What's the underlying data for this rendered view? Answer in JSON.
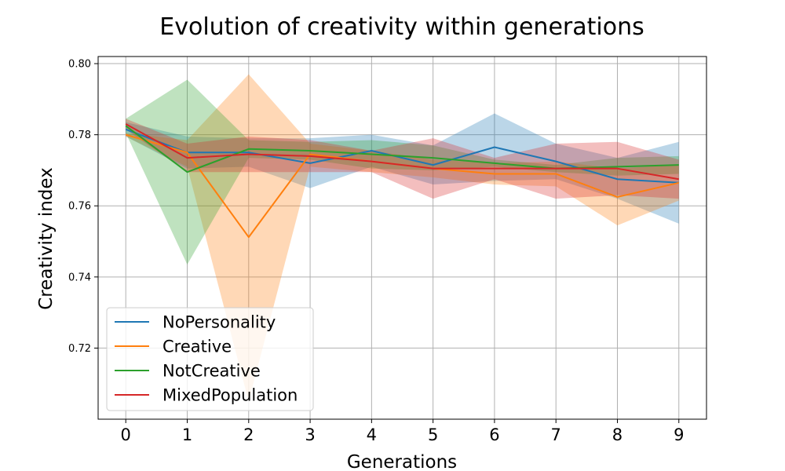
{
  "chart_data": {
    "type": "line",
    "title": "Evolution of creativity within generations",
    "xlabel": "Generations",
    "ylabel": "Creativity index",
    "x": [
      0,
      1,
      2,
      3,
      4,
      5,
      6,
      7,
      8,
      9
    ],
    "xlim": [
      -0.45,
      9.45
    ],
    "ylim": [
      0.7,
      0.802
    ],
    "yticks": [
      "0.72",
      "0.74",
      "0.76",
      "0.78",
      "0.80"
    ],
    "ytick_values": [
      0.72,
      0.74,
      0.76,
      0.78,
      0.8
    ],
    "xticks": [
      "0",
      "1",
      "2",
      "3",
      "4",
      "5",
      "6",
      "7",
      "8",
      "9"
    ],
    "grid": true,
    "legend_position": "lower-left",
    "series": [
      {
        "name": "NoPersonality",
        "color": "#1f77b4",
        "values": [
          0.7815,
          0.775,
          0.775,
          0.772,
          0.7755,
          0.7715,
          0.7765,
          0.7725,
          0.7675,
          0.7665
        ],
        "lower": [
          0.7795,
          0.7705,
          0.771,
          0.765,
          0.771,
          0.766,
          0.767,
          0.7675,
          0.762,
          0.755
        ],
        "upper": [
          0.7835,
          0.7795,
          0.779,
          0.779,
          0.78,
          0.777,
          0.786,
          0.7775,
          0.7735,
          0.778
        ]
      },
      {
        "name": "Creative",
        "color": "#ff7f0e",
        "values": [
          0.78,
          0.775,
          0.7512,
          0.7745,
          0.7725,
          0.7705,
          0.769,
          0.769,
          0.7625,
          0.7665
        ],
        "lower": [
          0.7795,
          0.771,
          0.705,
          0.771,
          0.7695,
          0.768,
          0.766,
          0.7655,
          0.7545,
          0.7615
        ],
        "upper": [
          0.7805,
          0.7785,
          0.797,
          0.7775,
          0.7755,
          0.773,
          0.772,
          0.7725,
          0.7705,
          0.7715
        ]
      },
      {
        "name": "NotCreative",
        "color": "#2ca02c",
        "values": [
          0.7825,
          0.7695,
          0.776,
          0.7755,
          0.7745,
          0.7735,
          0.772,
          0.7705,
          0.771,
          0.7715
        ],
        "lower": [
          0.7805,
          0.7435,
          0.7735,
          0.773,
          0.7705,
          0.77,
          0.771,
          0.7695,
          0.7685,
          0.769
        ],
        "upper": [
          0.7845,
          0.7955,
          0.7785,
          0.778,
          0.7785,
          0.777,
          0.773,
          0.7715,
          0.7735,
          0.774
        ]
      },
      {
        "name": "MixedPopulation",
        "color": "#d62728",
        "values": [
          0.783,
          0.7735,
          0.7745,
          0.774,
          0.7725,
          0.7705,
          0.7705,
          0.7705,
          0.7705,
          0.7675
        ],
        "lower": [
          0.7815,
          0.7695,
          0.7695,
          0.7695,
          0.7695,
          0.762,
          0.7675,
          0.762,
          0.763,
          0.762
        ],
        "upper": [
          0.7845,
          0.7775,
          0.7795,
          0.7785,
          0.7755,
          0.779,
          0.7735,
          0.7775,
          0.778,
          0.773
        ]
      }
    ]
  }
}
